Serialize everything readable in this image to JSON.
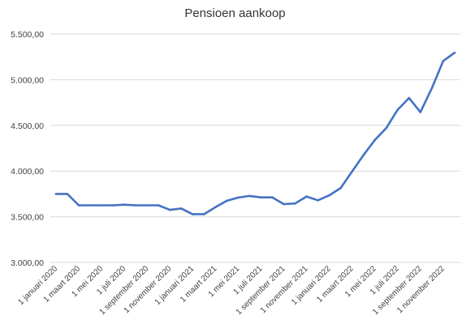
{
  "chart_data": {
    "type": "line",
    "title": "Pensioen aankoop",
    "xlabel": "",
    "ylabel": "",
    "ylim": [
      3000,
      5500
    ],
    "yticks": [
      3000,
      3500,
      4000,
      4500,
      5000,
      5500
    ],
    "ytick_labels": [
      "3.000,00",
      "3.500,00",
      "4.000,00",
      "4.500,00",
      "5.000,00",
      "5.500,00"
    ],
    "xtick_labels": [
      "1 januari 2020",
      "1 maart 2020",
      "1 mei 2020",
      "1 juli 2020",
      "1 september 2020",
      "1 november 2020",
      "1 januari 2021",
      "1 maart 2021",
      "1 mei 2021",
      "1 juli 2021",
      "1 september 2021",
      "1 november 2021",
      "1 januari 2022",
      "1 maart 2022",
      "1 mei 2022",
      "1 juli 2022",
      "1 september 2022",
      "1 november 2022"
    ],
    "grid": true,
    "series": [
      {
        "name": "",
        "color": "#4472c4",
        "values": [
          3750,
          3750,
          3625,
          3625,
          3625,
          3625,
          3632,
          3625,
          3625,
          3625,
          3575,
          3590,
          3528,
          3528,
          3605,
          3675,
          3710,
          3728,
          3712,
          3712,
          3638,
          3645,
          3722,
          3680,
          3735,
          3815,
          3995,
          4175,
          4340,
          4470,
          4670,
          4800,
          4645,
          4905,
          5205,
          5295
        ]
      }
    ]
  }
}
